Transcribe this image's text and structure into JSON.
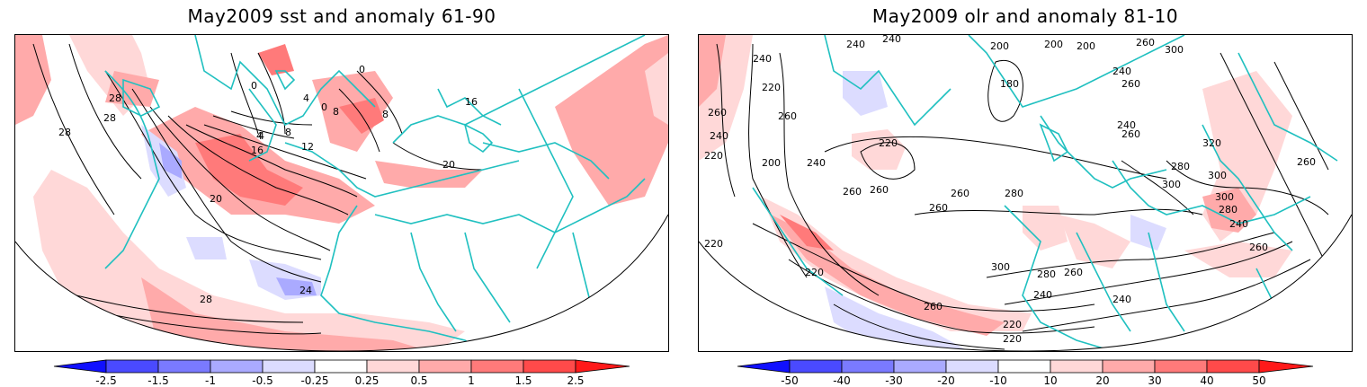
{
  "panels": [
    {
      "title": "May2009 sst and anomaly 61-90",
      "contour_labels": [
        "28",
        "28",
        "28",
        "0",
        "0",
        "0",
        "4",
        "4",
        "8",
        "8",
        "4",
        "8",
        "12",
        "16",
        "16",
        "20",
        "20",
        "24",
        "28"
      ],
      "colorbar_labels": [
        "-2.5",
        "-1.5",
        "-1",
        "-0.5",
        "-0.25",
        "0.25",
        "0.5",
        "1",
        "1.5",
        "2.5"
      ]
    },
    {
      "title": "May2009 olr and anomaly 81-10",
      "contour_labels": [
        "240",
        "240",
        "200",
        "200",
        "200",
        "260",
        "240",
        "300",
        "180",
        "240",
        "260",
        "220",
        "260",
        "260",
        "220",
        "240",
        "200",
        "260",
        "240",
        "220",
        "260",
        "240",
        "260",
        "320",
        "280",
        "300",
        "260",
        "260",
        "280",
        "260",
        "300",
        "300",
        "280",
        "240",
        "260",
        "300",
        "280",
        "260",
        "240",
        "220",
        "260",
        "220",
        "220",
        "240",
        "220"
      ],
      "colorbar_labels": [
        "-50",
        "-40",
        "-30",
        "-20",
        "-10",
        "10",
        "20",
        "30",
        "40",
        "50"
      ]
    }
  ],
  "colors": {
    "coast": "#20c0c0",
    "pos1": "#ffd8d8",
    "pos2": "#ffaaaa",
    "pos3": "#ff7a7a",
    "pos4": "#ff4a4a",
    "pos5": "#ff1a1a",
    "neg1": "#dcdcff",
    "neg2": "#aaaaff",
    "neg3": "#7a7aff",
    "neg4": "#4a4aff",
    "neg5": "#1010ff"
  }
}
